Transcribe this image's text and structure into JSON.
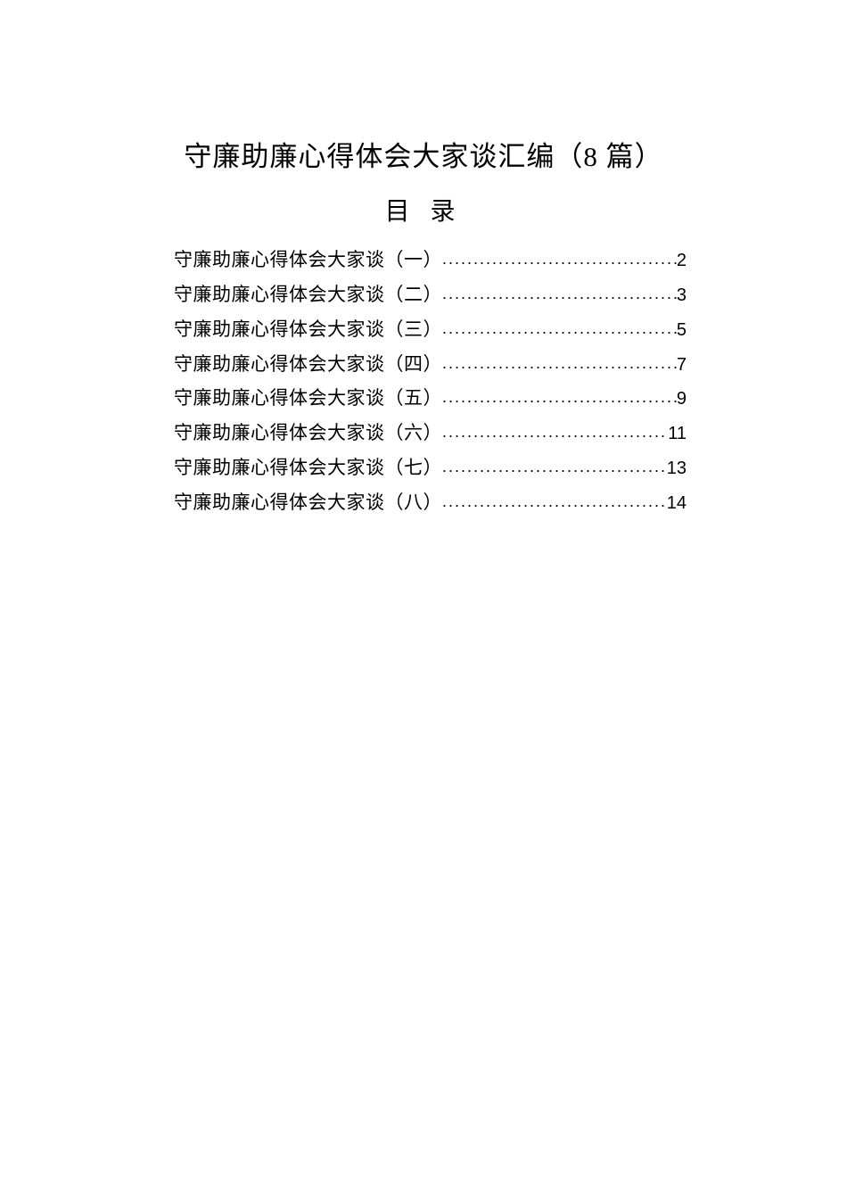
{
  "document": {
    "title": "守廉助廉心得体会大家谈汇编（8 篇）",
    "subtitle": "目 录",
    "background_color": "#ffffff",
    "text_color": "#000000",
    "title_fontsize": 31,
    "subtitle_fontsize": 28,
    "toc_fontsize": 21,
    "title_font": "SimSun",
    "toc_font": "Microsoft YaHei",
    "toc": [
      {
        "label": "守廉助廉心得体会大家谈（一）",
        "page": "2"
      },
      {
        "label": "守廉助廉心得体会大家谈（二）",
        "page": "3"
      },
      {
        "label": "守廉助廉心得体会大家谈（三）",
        "page": "5"
      },
      {
        "label": "守廉助廉心得体会大家谈（四）",
        "page": "7"
      },
      {
        "label": "守廉助廉心得体会大家谈（五）",
        "page": "9"
      },
      {
        "label": "守廉助廉心得体会大家谈（六）",
        "page": "11"
      },
      {
        "label": "守廉助廉心得体会大家谈（七）",
        "page": "13"
      },
      {
        "label": "守廉助廉心得体会大家谈（八）",
        "page": "14"
      }
    ]
  }
}
